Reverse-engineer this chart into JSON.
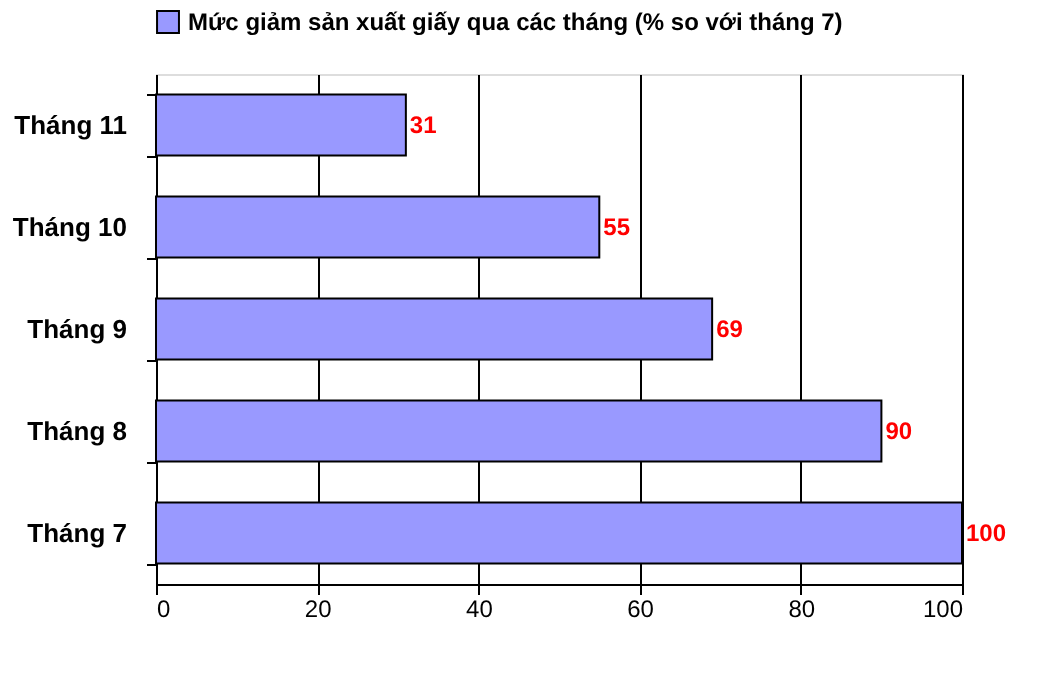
{
  "chart_data": {
    "type": "bar",
    "orientation": "horizontal",
    "categories": [
      "Tháng 11",
      "Tháng 10",
      "Tháng 9",
      "Tháng 8",
      "Tháng 7"
    ],
    "series": [
      {
        "name": "Mức giảm sản xuất giấy qua các tháng (% so với tháng 7)",
        "color": "#9999ff",
        "values": [
          31,
          55,
          69,
          90,
          100
        ]
      }
    ],
    "xlim": [
      0,
      100
    ],
    "xticks": [
      0,
      20,
      40,
      60,
      80,
      100
    ],
    "grid": "x",
    "legend": "top",
    "data_labels": true
  }
}
